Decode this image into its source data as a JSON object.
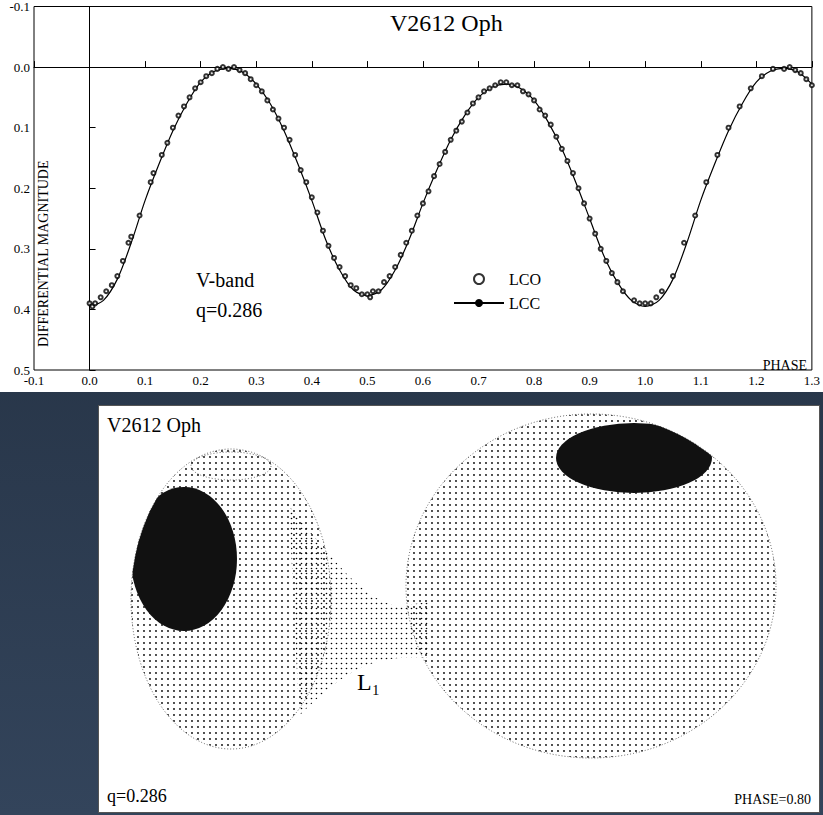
{
  "chart_data": {
    "type": "line",
    "title": "V2612 Oph",
    "x_label": "PHASE",
    "y_label": "DIFFERENTIAL MAGNITUDE",
    "annotations": [
      "V-band",
      "q=0.286"
    ],
    "xlim": [
      -0.1,
      1.3
    ],
    "xticks": [
      -0.1,
      {
        "value": 0,
        "label": "0.0"
      },
      0.1,
      0.2,
      0.3,
      0.4,
      0.5,
      0.6,
      0.7,
      0.8,
      0.9,
      {
        "value": 1,
        "label": "1.0"
      },
      1.1,
      1.2,
      1.3
    ],
    "ylim": [
      -0.1,
      0.5
    ],
    "yticks": [
      -0.1,
      {
        "value": 0,
        "label": "0.0"
      },
      0.1,
      0.2,
      0.3,
      0.4,
      0.5
    ],
    "grid": false,
    "legend": "bottom",
    "series": [
      {
        "name": "LCO",
        "type": "scatter",
        "marker": "circle",
        "color": "#000000",
        "x": [
          0.0,
          0.005,
          0.01,
          0.02,
          0.03,
          0.04,
          0.05,
          0.06,
          0.07,
          0.075,
          0.09,
          0.11,
          0.115,
          0.13,
          0.14,
          0.15,
          0.16,
          0.17,
          0.18,
          0.19,
          0.2,
          0.21,
          0.22,
          0.23,
          0.24,
          0.25,
          0.26,
          0.27,
          0.28,
          0.29,
          0.3,
          0.31,
          0.32,
          0.33,
          0.34,
          0.35,
          0.36,
          0.37,
          0.38,
          0.39,
          0.4,
          0.41,
          0.42,
          0.43,
          0.44,
          0.45,
          0.46,
          0.47,
          0.48,
          0.49,
          0.5,
          0.505,
          0.51,
          0.52,
          0.53,
          0.54,
          0.55,
          0.56,
          0.57,
          0.58,
          0.59,
          0.6,
          0.61,
          0.62,
          0.63,
          0.64,
          0.65,
          0.66,
          0.67,
          0.68,
          0.69,
          0.7,
          0.71,
          0.72,
          0.73,
          0.74,
          0.75,
          0.76,
          0.77,
          0.78,
          0.79,
          0.8,
          0.81,
          0.82,
          0.83,
          0.84,
          0.85,
          0.86,
          0.87,
          0.88,
          0.89,
          0.9,
          0.91,
          0.92,
          0.93,
          0.94,
          0.95,
          0.96,
          0.98,
          0.99,
          1.0,
          1.01,
          1.02,
          1.03,
          1.05,
          1.07,
          1.09,
          1.11,
          1.13,
          1.15,
          1.17,
          1.19,
          1.21,
          1.23,
          1.25,
          1.26,
          1.27,
          1.28,
          1.29,
          1.3
        ],
        "values": [
          0.39,
          0.395,
          0.39,
          0.38,
          0.37,
          0.36,
          0.345,
          0.32,
          0.29,
          0.28,
          0.245,
          0.19,
          0.175,
          0.145,
          0.125,
          0.1,
          0.08,
          0.065,
          0.05,
          0.035,
          0.025,
          0.015,
          0.01,
          0.003,
          0.0,
          0.003,
          0.0,
          0.005,
          0.01,
          0.02,
          0.03,
          0.04,
          0.055,
          0.07,
          0.085,
          0.1,
          0.12,
          0.145,
          0.17,
          0.19,
          0.215,
          0.24,
          0.27,
          0.295,
          0.315,
          0.33,
          0.345,
          0.36,
          0.365,
          0.375,
          0.375,
          0.38,
          0.37,
          0.37,
          0.355,
          0.345,
          0.33,
          0.31,
          0.29,
          0.27,
          0.245,
          0.225,
          0.205,
          0.18,
          0.16,
          0.14,
          0.12,
          0.105,
          0.09,
          0.075,
          0.06,
          0.05,
          0.04,
          0.035,
          0.03,
          0.025,
          0.025,
          0.03,
          0.03,
          0.04,
          0.045,
          0.055,
          0.07,
          0.08,
          0.095,
          0.115,
          0.135,
          0.155,
          0.175,
          0.2,
          0.225,
          0.25,
          0.275,
          0.3,
          0.32,
          0.34,
          0.355,
          0.37,
          0.385,
          0.39,
          0.39,
          0.39,
          0.38,
          0.37,
          0.345,
          0.29,
          0.245,
          0.19,
          0.145,
          0.1,
          0.065,
          0.035,
          0.015,
          0.003,
          0.003,
          0.0,
          0.005,
          0.01,
          0.02,
          0.03
        ]
      },
      {
        "name": "LCC",
        "type": "line",
        "line_style": "solid",
        "color": "#000000",
        "x": [
          0.0,
          0.025,
          0.05,
          0.075,
          0.1,
          0.125,
          0.15,
          0.175,
          0.2,
          0.225,
          0.25,
          0.275,
          0.3,
          0.325,
          0.35,
          0.375,
          0.4,
          0.425,
          0.45,
          0.475,
          0.5,
          0.525,
          0.55,
          0.575,
          0.6,
          0.625,
          0.65,
          0.675,
          0.7,
          0.725,
          0.75,
          0.775,
          0.8,
          0.825,
          0.85,
          0.875,
          0.9,
          0.925,
          0.95,
          0.975,
          1.0,
          1.025,
          1.05,
          1.075,
          1.1,
          1.125,
          1.15,
          1.175,
          1.2,
          1.225,
          1.25,
          1.275,
          1.3
        ],
        "values": [
          0.395,
          0.385,
          0.35,
          0.29,
          0.22,
          0.16,
          0.105,
          0.06,
          0.025,
          0.007,
          0.002,
          0.008,
          0.028,
          0.06,
          0.105,
          0.16,
          0.22,
          0.285,
          0.335,
          0.368,
          0.377,
          0.368,
          0.335,
          0.285,
          0.225,
          0.17,
          0.12,
          0.08,
          0.05,
          0.033,
          0.028,
          0.035,
          0.055,
          0.09,
          0.135,
          0.19,
          0.25,
          0.31,
          0.355,
          0.385,
          0.395,
          0.385,
          0.35,
          0.29,
          0.22,
          0.16,
          0.105,
          0.06,
          0.025,
          0.007,
          0.002,
          0.008,
          0.028
        ]
      }
    ]
  },
  "diagram": {
    "title": "V2612 Oph",
    "mass_ratio": "q=0.286",
    "phase": "PHASE=0.80",
    "inner_lagrange_point": "L₁"
  }
}
